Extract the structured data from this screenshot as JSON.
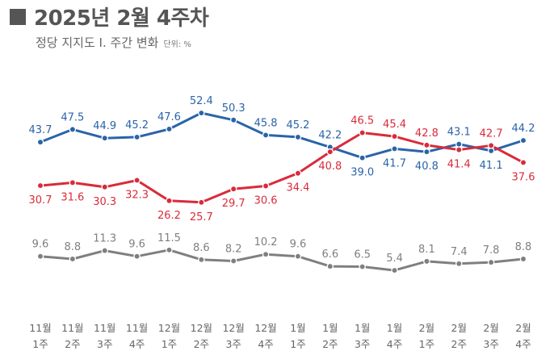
{
  "header": {
    "title": "2025년 2월 4주차",
    "subtitle": "정당 지지도 Ⅰ. 주간 변화",
    "unit": "단위: %"
  },
  "chart_data": {
    "type": "line",
    "title": "2025년 2월 4주차",
    "subtitle": "정당 지지도 Ⅰ. 주간 변화",
    "unit": "단위: %",
    "categories": [
      [
        "11월",
        "1주"
      ],
      [
        "11월",
        "2주"
      ],
      [
        "11월",
        "3주"
      ],
      [
        "11월",
        "4주"
      ],
      [
        "12월",
        "1주"
      ],
      [
        "12월",
        "2주"
      ],
      [
        "12월",
        "3주"
      ],
      [
        "12월",
        "4주"
      ],
      [
        "1월",
        "1주"
      ],
      [
        "1월",
        "2주"
      ],
      [
        "1월",
        "3주"
      ],
      [
        "1월",
        "4주"
      ],
      [
        "2월",
        "1주"
      ],
      [
        "2월",
        "2주"
      ],
      [
        "2월",
        "3주"
      ],
      [
        "2월",
        "4주"
      ]
    ],
    "series": [
      {
        "name": "blue",
        "color": "#2a64a8",
        "values": [
          43.7,
          47.5,
          44.9,
          45.2,
          47.6,
          52.4,
          50.3,
          45.8,
          45.2,
          42.2,
          39.0,
          41.7,
          40.8,
          43.1,
          41.1,
          44.2
        ],
        "labels": [
          "43.7",
          "47.5",
          "44.9",
          "45.2",
          "47.6",
          "52.4",
          "50.3",
          "45.8",
          "45.2",
          "42.2",
          "39.0",
          "41.7",
          "40.8",
          "43.1",
          "41.1",
          "44.2"
        ]
      },
      {
        "name": "red",
        "color": "#d92b3a",
        "values": [
          30.7,
          31.6,
          30.3,
          32.3,
          26.2,
          25.7,
          29.7,
          30.6,
          34.4,
          40.8,
          46.5,
          45.4,
          42.8,
          41.4,
          42.7,
          37.6
        ],
        "labels": [
          "30.7",
          "31.6",
          "30.3",
          "32.3",
          "26.2",
          "25.7",
          "29.7",
          "30.6",
          "34.4",
          "40.8",
          "46.5",
          "45.4",
          "42.8",
          "41.4",
          "42.7",
          "37.6"
        ]
      },
      {
        "name": "gray",
        "color": "#7f7f7f",
        "values": [
          9.6,
          8.8,
          11.3,
          9.6,
          11.5,
          8.6,
          8.2,
          10.2,
          9.6,
          6.6,
          6.5,
          5.4,
          8.1,
          7.4,
          7.8,
          8.8
        ],
        "labels": [
          "9.6",
          "8.8",
          "11.3",
          "9.6",
          "11.5",
          "8.6",
          "8.2",
          "10.2",
          "9.6",
          "6.6",
          "6.5",
          "5.4",
          "8.1",
          "7.4",
          "7.8",
          "8.8"
        ]
      }
    ],
    "label_position": {
      "blue": [
        "above",
        "above",
        "above",
        "above",
        "above",
        "above",
        "above",
        "above",
        "above",
        "above",
        "below",
        "below",
        "below",
        "above",
        "below",
        "above"
      ],
      "red": [
        "below",
        "below",
        "below",
        "below",
        "below",
        "below",
        "below",
        "below",
        "below",
        "below",
        "above",
        "above",
        "above",
        "below",
        "above",
        "below"
      ],
      "gray": [
        "above",
        "above",
        "above",
        "above",
        "above",
        "above",
        "above",
        "above",
        "above",
        "above",
        "above",
        "above",
        "above",
        "above",
        "above",
        "above"
      ]
    },
    "grid": false,
    "legend": "none"
  }
}
